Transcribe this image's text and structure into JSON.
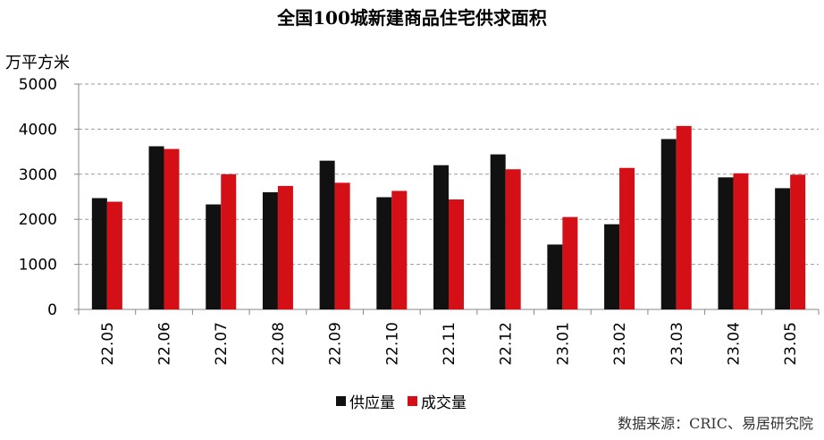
{
  "chart_data": {
    "type": "bar",
    "title": "全国100城新建商品住宅供求面积",
    "ylabel": "万平方米",
    "xlabel": "",
    "ylim": [
      0,
      5000
    ],
    "yticks": [
      0,
      1000,
      2000,
      3000,
      4000,
      5000
    ],
    "grid": true,
    "legend_position": "bottom",
    "categories": [
      "22.05",
      "22.06",
      "22.07",
      "22.08",
      "22.09",
      "22.10",
      "22.11",
      "22.12",
      "23.01",
      "23.02",
      "23.03",
      "23.04",
      "23.05"
    ],
    "series": [
      {
        "name": "供应量",
        "color": "#111111",
        "values": [
          2470,
          3620,
          2330,
          2600,
          3300,
          2490,
          3200,
          3440,
          1440,
          1890,
          3780,
          2930,
          2690
        ]
      },
      {
        "name": "成交量",
        "color": "#d40f16",
        "values": [
          2390,
          3560,
          3000,
          2740,
          2810,
          2630,
          2440,
          3110,
          2050,
          3140,
          4070,
          3020,
          2990
        ]
      }
    ]
  },
  "source": "数据来源：CRIC、易居研究院"
}
